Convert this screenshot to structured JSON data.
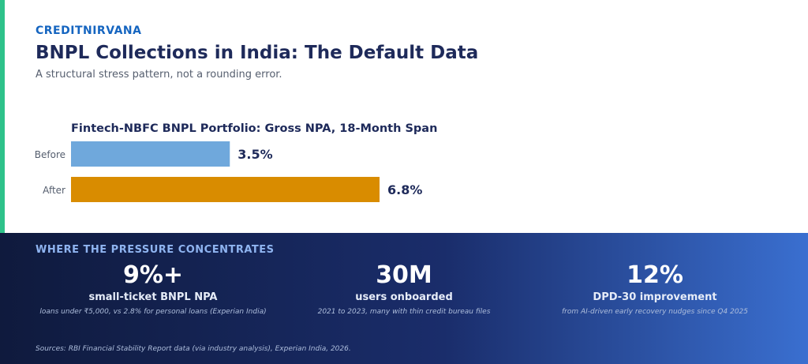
{
  "header": {
    "brand": "CREDITNIRVANA",
    "title": "BNPL Collections in India: The Default Data",
    "subtitle": "A structural stress pattern, not a rounding error."
  },
  "chart_data": {
    "type": "bar",
    "orientation": "horizontal",
    "title": "Fintech-NBFC BNPL Portfolio: Gross NPA, 18-Month Span",
    "categories": [
      "Before",
      "After"
    ],
    "values": [
      3.5,
      6.8
    ],
    "value_labels": [
      "3.5%",
      "6.8%"
    ],
    "colors": [
      "#6fa8dc",
      "#d98c00"
    ],
    "unit": "%",
    "grid": false,
    "legend": "none"
  },
  "panel": {
    "heading": "WHERE THE PRESSURE CONCENTRATES",
    "stats": [
      {
        "value": "9%+",
        "label": "small-ticket BNPL NPA",
        "note": "loans under ₹5,000, vs 2.8% for personal loans (Experian India)"
      },
      {
        "value": "30M",
        "label": "users onboarded",
        "note": "2021 to 2023, many with thin credit bureau files"
      },
      {
        "value": "12%",
        "label": "DPD-30 improvement",
        "note": "from AI-driven early recovery nudges since Q4 2025"
      }
    ],
    "sources": "Sources: RBI Financial Stability Report data (via industry analysis), Experian India, 2026."
  },
  "colors": {
    "accent": "#2ec28a",
    "brand": "#1565c0",
    "title": "#1e2a5a",
    "panel_start": "#0f1a3d",
    "panel_end": "#3a6fd0"
  }
}
